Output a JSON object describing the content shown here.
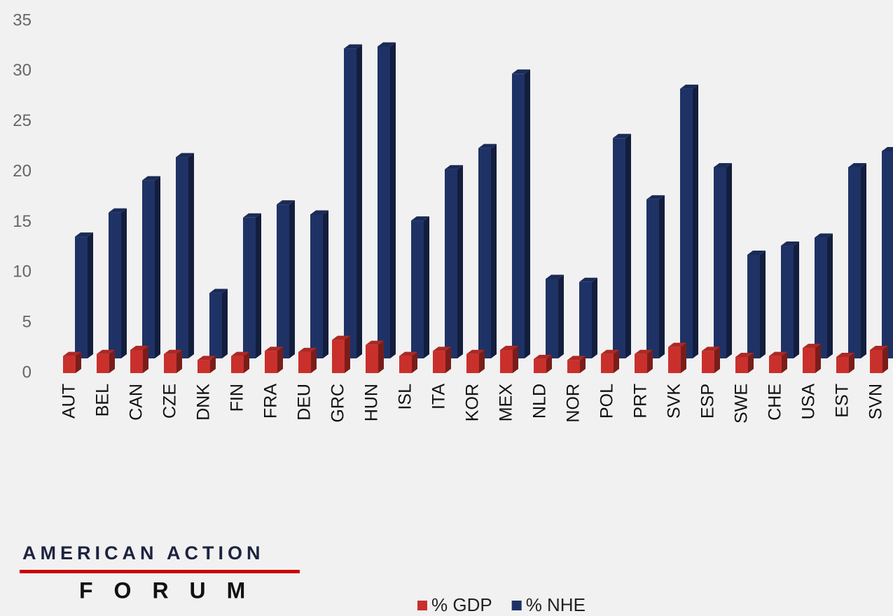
{
  "logo": {
    "line1": "AMERICAN ACTION",
    "line2": "FORUM"
  },
  "chart_data": {
    "type": "bar3d",
    "categories": [
      "AUT",
      "BEL",
      "CAN",
      "CZE",
      "DNK",
      "FIN",
      "FRA",
      "DEU",
      "GRC",
      "HUN",
      "ISL",
      "ITA",
      "KOR",
      "MEX",
      "NLD",
      "NOR",
      "POL",
      "PRT",
      "SVK",
      "ESP",
      "SWE",
      "CHE",
      "USA",
      "EST",
      "SVN"
    ],
    "series": [
      {
        "name": "% GDP",
        "color": "#c9302c",
        "values": [
          1.7,
          1.9,
          2.3,
          1.9,
          1.3,
          1.7,
          2.2,
          2.1,
          3.3,
          2.8,
          1.7,
          2.2,
          1.9,
          2.3,
          1.4,
          1.3,
          1.9,
          1.9,
          2.6,
          2.2,
          1.6,
          1.7,
          2.5,
          1.6,
          2.3
        ]
      },
      {
        "name": "% NHE",
        "color": "#1f3266",
        "values": [
          12.1,
          14.5,
          17.7,
          20.0,
          6.5,
          14.0,
          15.3,
          14.3,
          30.8,
          31.0,
          13.7,
          18.8,
          20.9,
          28.3,
          7.9,
          7.6,
          21.9,
          15.8,
          26.8,
          19.0,
          10.3,
          11.2,
          12.0,
          19.0,
          20.6
        ]
      }
    ],
    "ylim": [
      0,
      35
    ],
    "yticks": [
      0,
      5,
      10,
      15,
      20,
      25,
      30,
      35
    ],
    "grid": false,
    "legend": "bottom"
  }
}
